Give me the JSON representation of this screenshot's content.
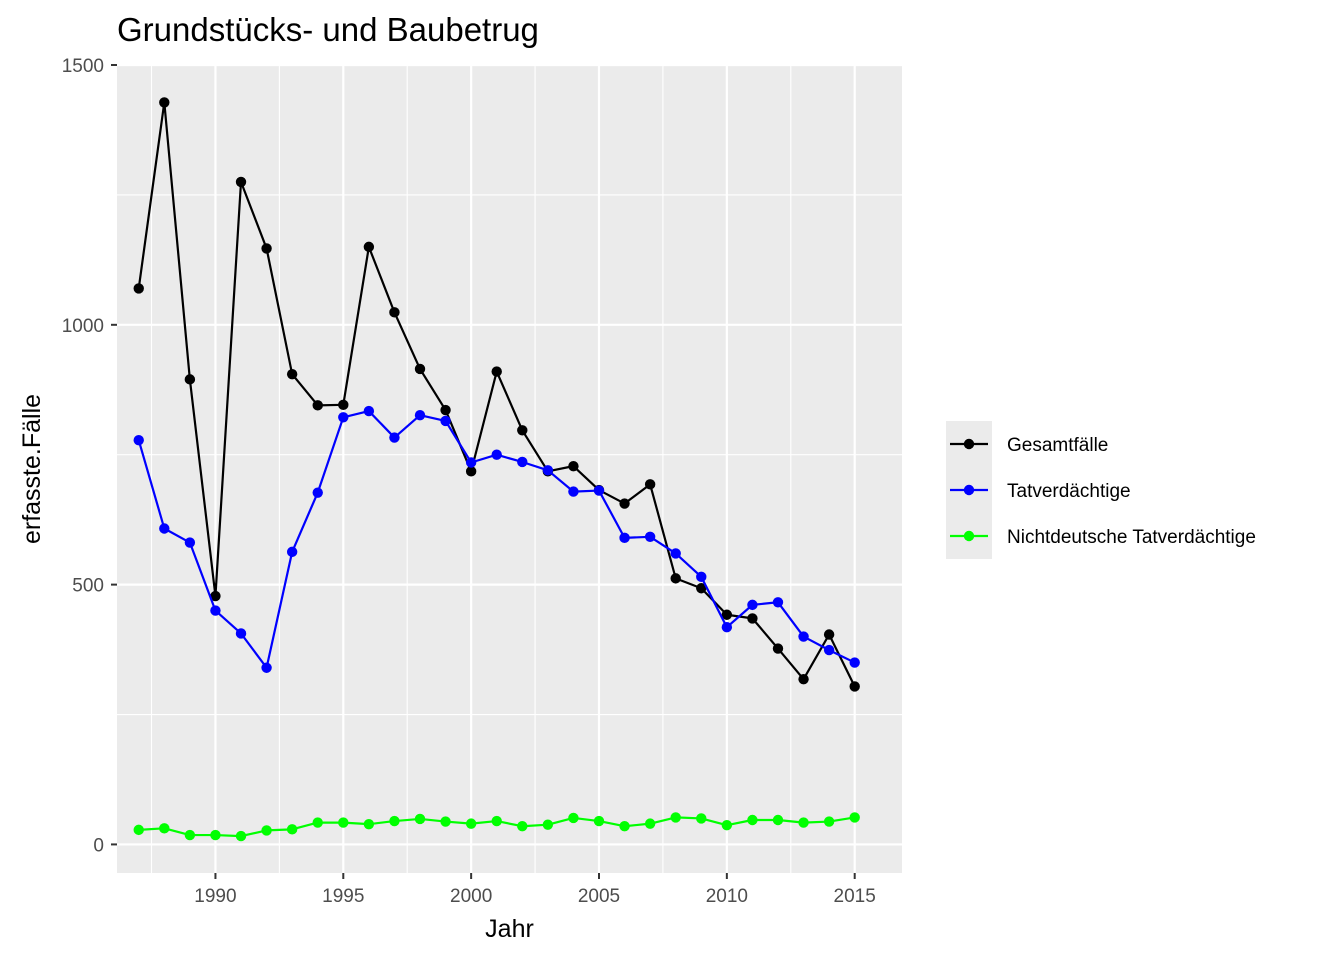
{
  "chart_data": {
    "type": "line",
    "title": "Grundstücks- und Baubetrug",
    "xlabel": "Jahr",
    "ylabel": "erfasste.Fälle",
    "xlim": [
      1986.15,
      2016.85
    ],
    "ylim": [
      -55,
      1500
    ],
    "x_ticks": [
      1990,
      1995,
      2000,
      2005,
      2010,
      2015
    ],
    "y_ticks": [
      0,
      500,
      1000,
      1500
    ],
    "grid": true,
    "legend_position": "right",
    "x": [
      1987,
      1988,
      1989,
      1990,
      1991,
      1992,
      1993,
      1994,
      1995,
      1996,
      1997,
      1998,
      1999,
      2000,
      2001,
      2002,
      2003,
      2004,
      2005,
      2006,
      2007,
      2008,
      2009,
      2010,
      2011,
      2012,
      2013,
      2014,
      2015
    ],
    "series": [
      {
        "name": "Gesamtfälle",
        "color": "#000000",
        "values": [
          1070,
          1428,
          895,
          478,
          1275,
          1147,
          905,
          845,
          846,
          1150,
          1024,
          915,
          836,
          718,
          910,
          797,
          718,
          728,
          682,
          656,
          693,
          512,
          493,
          442,
          435,
          377,
          318,
          404,
          304
        ]
      },
      {
        "name": "Tatverdächtige",
        "color": "#0000ff",
        "values": [
          778,
          608,
          581,
          450,
          406,
          340,
          563,
          677,
          822,
          834,
          783,
          826,
          815,
          735,
          750,
          736,
          720,
          679,
          681,
          590,
          592,
          560,
          515,
          418,
          461,
          466,
          400,
          374,
          350
        ]
      },
      {
        "name": "Nichtdeutsche Tatverdächtige",
        "color": "#00ff00",
        "values": [
          28,
          31,
          18,
          18,
          16,
          27,
          29,
          42,
          42,
          39,
          45,
          49,
          44,
          40,
          45,
          35,
          38,
          51,
          45,
          35,
          40,
          52,
          50,
          37,
          47,
          47,
          42,
          44,
          52
        ]
      }
    ]
  }
}
